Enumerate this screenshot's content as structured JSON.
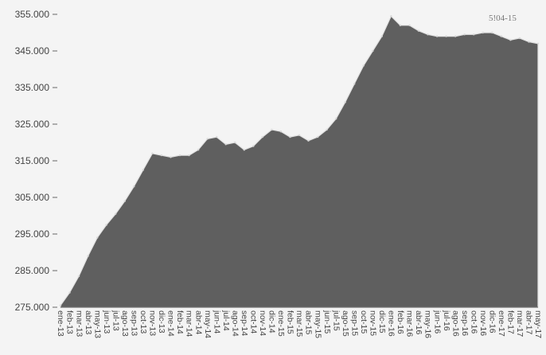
{
  "chart_data": {
    "type": "area",
    "title": "",
    "xlabel": "",
    "ylabel": "",
    "corner_note": "5!04-15",
    "colors": {
      "area": "#5f5f5f",
      "background": "#f4f4f4",
      "text": "#444444"
    },
    "ylim": [
      275000,
      355000
    ],
    "yticks": [
      "275.000",
      "285.000",
      "295.000",
      "305.000",
      "315.000",
      "325.000",
      "335.000",
      "345.000",
      "355.000"
    ],
    "grid": false,
    "legend": "none",
    "categories": [
      "ene-13",
      "feb-13",
      "mar-13",
      "abr-13",
      "may-13",
      "jun-13",
      "jul-13",
      "ago-13",
      "sep-13",
      "oct-13",
      "nov-13",
      "dic-13",
      "ene-14",
      "feb-14",
      "mar-14",
      "abr-14",
      "may-14",
      "jun-14",
      "jul-14",
      "ago-14",
      "sep-14",
      "oct-14",
      "nov-14",
      "dic-14",
      "ene-15",
      "feb-15",
      "mar-15",
      "abr-15",
      "may-15",
      "jun-15",
      "jul-15",
      "ago-15",
      "sep-15",
      "oct-15",
      "nov-15",
      "dic-15",
      "ene-16",
      "feb-16",
      "mar-16",
      "abr-16",
      "may-16",
      "jun-16",
      "jul-16",
      "ago-16",
      "sep-16",
      "oct-16",
      "nov-16",
      "dic-16",
      "ene-17",
      "feb-17",
      "mar-17",
      "abr-17",
      "may-17"
    ],
    "values": [
      275500,
      279000,
      283500,
      289000,
      294000,
      297500,
      300500,
      304000,
      308000,
      312500,
      317000,
      316500,
      316000,
      316500,
      316500,
      318000,
      321000,
      321500,
      319500,
      320000,
      318000,
      319000,
      321500,
      323500,
      323000,
      321500,
      322000,
      320500,
      321500,
      323500,
      326500,
      331000,
      336000,
      341000,
      345000,
      349000,
      354500,
      352000,
      352000,
      350500,
      349500,
      349000,
      349000,
      349000,
      349500,
      349500,
      350000,
      350000,
      349000,
      348000,
      348500,
      347500,
      347000
    ]
  }
}
